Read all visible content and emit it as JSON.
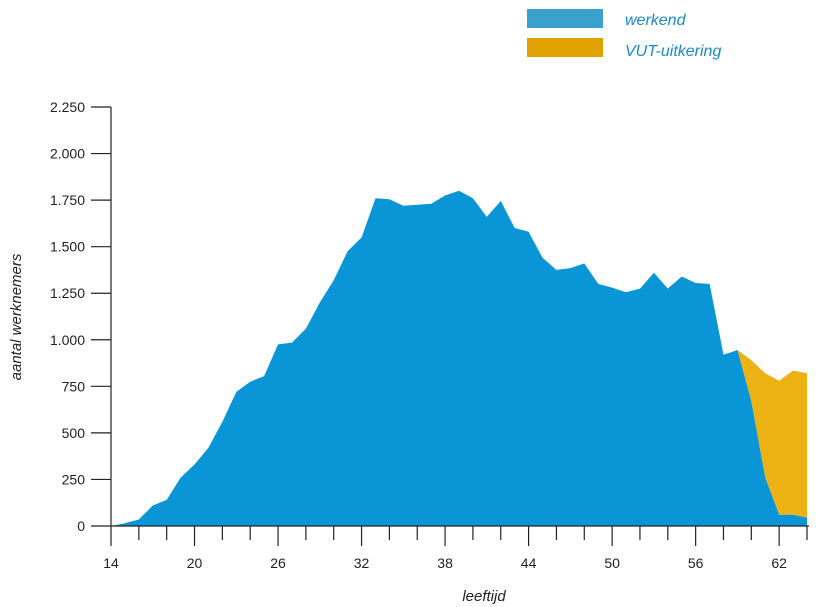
{
  "colors": {
    "werkend": "#0a96d6",
    "vut": "#ecb112",
    "legend_werkend": "#3aa0cc",
    "legend_vut": "#e1a200",
    "legend_text": "#1a8ac4",
    "axis": "#222222"
  },
  "chart_data": {
    "type": "area",
    "stacked": true,
    "xlabel": "leeftijd",
    "ylabel": "aantal werknemers",
    "xlim": [
      14,
      64
    ],
    "ylim": [
      0,
      2250
    ],
    "x_ticks": [
      14,
      20,
      26,
      32,
      38,
      44,
      50,
      56,
      62
    ],
    "x_tick_labels": [
      "14",
      "20",
      "26",
      "32",
      "38",
      "44",
      "50",
      "56",
      "62"
    ],
    "y_ticks": [
      0,
      250,
      500,
      750,
      1000,
      1250,
      1500,
      1750,
      2000,
      2250
    ],
    "y_tick_labels": [
      "0",
      "250",
      "500",
      "750",
      "1.000",
      "1.250",
      "1.500",
      "1.750",
      "2.000",
      "2.250"
    ],
    "legend_position": "top-right",
    "x": [
      14,
      15,
      16,
      17,
      18,
      19,
      20,
      21,
      22,
      23,
      24,
      25,
      26,
      27,
      28,
      29,
      30,
      31,
      32,
      33,
      34,
      35,
      36,
      37,
      38,
      39,
      40,
      41,
      42,
      43,
      44,
      45,
      46,
      47,
      48,
      49,
      50,
      51,
      52,
      53,
      54,
      55,
      56,
      57,
      58,
      59,
      60,
      61,
      62,
      63,
      64
    ],
    "series": [
      {
        "name": "werkend",
        "values": [
          0,
          15,
          35,
          110,
          140,
          260,
          330,
          420,
          560,
          720,
          775,
          805,
          975,
          985,
          1060,
          1200,
          1320,
          1475,
          1550,
          1760,
          1755,
          1720,
          1725,
          1730,
          1775,
          1800,
          1760,
          1660,
          1745,
          1600,
          1580,
          1440,
          1375,
          1385,
          1410,
          1300,
          1280,
          1255,
          1275,
          1360,
          1275,
          1340,
          1305,
          1300,
          920,
          945,
          670,
          260,
          60,
          60,
          45
        ]
      },
      {
        "name": "VUT-uitkering",
        "values": [
          0,
          0,
          0,
          0,
          0,
          0,
          0,
          0,
          0,
          0,
          0,
          0,
          0,
          0,
          0,
          0,
          0,
          0,
          0,
          0,
          0,
          0,
          0,
          0,
          0,
          0,
          0,
          0,
          0,
          0,
          0,
          0,
          0,
          0,
          0,
          0,
          0,
          0,
          0,
          0,
          0,
          0,
          0,
          0,
          0,
          0,
          220,
          560,
          720,
          775,
          775
        ]
      }
    ]
  }
}
